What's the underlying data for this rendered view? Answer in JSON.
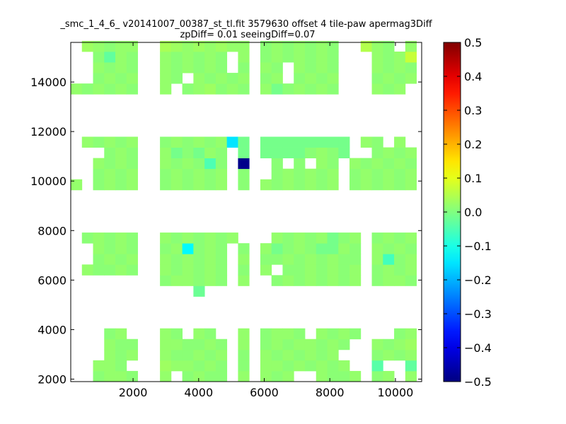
{
  "chart_data": {
    "type": "heatmap",
    "title_lines": [
      "_smc_1_4_6_ v20141007_00387_st_tl.fit 3579630 offset 4 tile-paw apermag3Diff",
      "zpDiff= 0.01 seeingDiff=0.07"
    ],
    "xlim": [
      100,
      10800
    ],
    "ylim": [
      1900,
      15600
    ],
    "xticks": [
      2000,
      4000,
      6000,
      8000,
      10000
    ],
    "xtick_labels": [
      "2000",
      "4000",
      "6000",
      "8000",
      "10000"
    ],
    "yticks": [
      2000,
      4000,
      6000,
      8000,
      10000,
      12000,
      14000
    ],
    "ytick_labels": [
      "2000",
      "4000",
      "6000",
      "8000",
      "10000",
      "12000",
      "14000"
    ],
    "colorbar": {
      "colormap": "jet",
      "vmin": -0.5,
      "vmax": 0.5,
      "ticks": [
        0.5,
        0.4,
        0.3,
        0.2,
        0.1,
        0.0,
        -0.1,
        -0.2,
        -0.3,
        -0.4,
        -0.5
      ],
      "tick_labels": [
        "0.5",
        "0.4",
        "0.3",
        "0.2",
        "0.1",
        "0.0",
        "−0.1",
        "−0.2",
        "−0.3",
        "−0.4",
        "−0.5"
      ]
    },
    "cell_width": 340,
    "cell_height": 430,
    "column_x": [
      100,
      440,
      780,
      1120,
      1460,
      1800,
      2820,
      3160,
      3500,
      3840,
      4180,
      4520,
      4860,
      5200,
      5880,
      6220,
      6560,
      6900,
      7240,
      7580,
      7920,
      8260,
      8600,
      8940,
      9280,
      9620,
      9960,
      10300
    ],
    "row_y": [
      1900,
      2330,
      2760,
      3190,
      3620,
      5340,
      5770,
      6200,
      6630,
      7060,
      7490,
      9640,
      10070,
      10500,
      10930,
      11360,
      13510,
      13940,
      14370,
      14800,
      15230
    ],
    "cells": [
      {
        "r": 0,
        "cols": [
          2,
          3,
          4,
          5,
          6,
          8,
          9,
          10,
          11,
          13,
          14,
          15,
          16,
          19,
          20,
          21,
          22,
          24,
          25,
          27
        ],
        "v": [
          0.01,
          0.02,
          0.02,
          0.01,
          0.02,
          0.01,
          0.02,
          0.01,
          0.01,
          0.02,
          0.02,
          0.01,
          0.02,
          0.02,
          0.01,
          0.01,
          0.02,
          0.01,
          0.02,
          0.02
        ]
      },
      {
        "r": 1,
        "cols": [
          2,
          3,
          4,
          6,
          7,
          8,
          9,
          10,
          11,
          13,
          14,
          15,
          16,
          17,
          18,
          19,
          20,
          21,
          24,
          27
        ],
        "v": [
          0.02,
          0.02,
          0.01,
          0.03,
          0.02,
          0.02,
          0.01,
          0.02,
          0.01,
          0.01,
          0.02,
          0.02,
          0.01,
          0.02,
          0.01,
          0.02,
          0.01,
          0.02,
          -0.04,
          -0.03
        ]
      },
      {
        "r": 2,
        "cols": [
          3,
          4,
          5,
          6,
          7,
          8,
          9,
          10,
          11,
          13,
          14,
          15,
          16,
          17,
          18,
          19,
          20,
          24,
          25,
          26,
          27
        ],
        "v": [
          0.02,
          0.01,
          0.02,
          0.02,
          0.01,
          0.01,
          0.02,
          0.01,
          0.02,
          0.01,
          0.02,
          0.01,
          0.02,
          0.01,
          0.02,
          0.01,
          0.02,
          0.01,
          0.02,
          0.01,
          0.02
        ]
      },
      {
        "r": 3,
        "cols": [
          3,
          4,
          5,
          6,
          7,
          8,
          9,
          10,
          11,
          13,
          14,
          15,
          16,
          17,
          18,
          19,
          20,
          21,
          24,
          25,
          26,
          27
        ],
        "v": [
          0.02,
          0.01,
          0.01,
          0.02,
          0.02,
          0.01,
          0.01,
          0.02,
          0.01,
          0.02,
          0.01,
          0.02,
          0.01,
          0.02,
          0.02,
          0.01,
          0.02,
          0.01,
          0.02,
          0.01,
          0.02,
          0.03
        ]
      },
      {
        "r": 4,
        "cols": [
          3,
          4,
          6,
          7,
          9,
          10,
          13,
          14,
          15,
          16,
          17,
          19,
          20,
          21,
          22,
          26,
          27
        ],
        "v": [
          0.01,
          0.02,
          0.02,
          0.01,
          0.02,
          0.01,
          0.02,
          0.01,
          0.02,
          0.02,
          0.01,
          0.02,
          0.01,
          0.02,
          0.01,
          0.01,
          0.02
        ]
      },
      {
        "r": 5,
        "cols": [
          9
        ],
        "v": [
          -0.02
        ]
      },
      {
        "r": 6,
        "cols": [
          6,
          7,
          8,
          9,
          10,
          11,
          13,
          15,
          16,
          17,
          18,
          19,
          20,
          21,
          22,
          24,
          25,
          26,
          27
        ],
        "v": [
          0.01,
          0.02,
          0.02,
          0.01,
          0.02,
          0.01,
          0.02,
          0.01,
          0.02,
          0.01,
          0.02,
          0.01,
          0.02,
          0.01,
          0.02,
          0.01,
          0.02,
          0.02,
          0.01
        ]
      },
      {
        "r": 7,
        "cols": [
          1,
          2,
          3,
          4,
          5,
          6,
          7,
          8,
          9,
          10,
          11,
          13,
          14,
          16,
          17,
          18,
          19,
          20,
          21,
          22,
          24,
          25,
          26,
          27
        ],
        "v": [
          0.02,
          0.01,
          0.01,
          0.02,
          0.01,
          0.02,
          0.01,
          0.02,
          0.01,
          0.02,
          0.01,
          0.01,
          0.02,
          0.01,
          0.01,
          0.02,
          0.01,
          0.02,
          0.01,
          0.02,
          0.01,
          0.02,
          0.01,
          0.02
        ]
      },
      {
        "r": 8,
        "cols": [
          2,
          3,
          4,
          5,
          6,
          7,
          8,
          9,
          10,
          11,
          13,
          14,
          15,
          16,
          17,
          18,
          19,
          20,
          21,
          22,
          24,
          25,
          26,
          27
        ],
        "v": [
          0.01,
          0.02,
          0.01,
          0.02,
          0.02,
          0.01,
          0.02,
          0.01,
          0.02,
          0.01,
          0.02,
          0.01,
          0.01,
          0.02,
          0.01,
          0.02,
          0.01,
          0.02,
          0.01,
          0.01,
          0.02,
          -0.06,
          0.01,
          0.02
        ]
      },
      {
        "r": 9,
        "cols": [
          2,
          3,
          4,
          5,
          6,
          7,
          8,
          9,
          10,
          11,
          13,
          14,
          15,
          16,
          17,
          18,
          19,
          20,
          21,
          22,
          24,
          25,
          26,
          27
        ],
        "v": [
          0.02,
          0.01,
          0.02,
          0.01,
          0.01,
          0.02,
          -0.13,
          0.01,
          0.02,
          0.01,
          0.01,
          0.02,
          -0.01,
          0.01,
          0.02,
          0.01,
          -0.01,
          -0.01,
          0.02,
          0.01,
          0.02,
          0.01,
          0.02,
          0.01
        ]
      },
      {
        "r": 10,
        "cols": [
          1,
          2,
          3,
          4,
          5,
          6,
          7,
          8,
          9,
          10,
          11,
          12,
          15,
          16,
          17,
          18,
          19,
          20,
          21,
          22,
          24,
          25,
          26,
          27
        ],
        "v": [
          0.01,
          0.02,
          0.01,
          0.02,
          0.01,
          0.02,
          0.01,
          0.02,
          0.01,
          0.02,
          0.01,
          0.02,
          0.02,
          0.01,
          0.02,
          0.01,
          0.02,
          -0.01,
          0.01,
          0.02,
          0.01,
          0.02,
          0.01,
          0.02
        ]
      },
      {
        "r": 11,
        "cols": [
          0,
          2,
          3,
          4,
          5,
          6,
          7,
          8,
          9,
          10,
          11,
          13,
          14,
          15,
          16,
          17,
          18,
          19,
          20,
          22,
          23,
          24,
          25,
          26,
          27
        ],
        "v": [
          0.02,
          0.01,
          0.02,
          0.01,
          0.02,
          0.01,
          0.02,
          0.01,
          0.02,
          0.01,
          0.02,
          0.01,
          0.02,
          0.01,
          0.02,
          0.01,
          0.02,
          0.01,
          0.02,
          0.01,
          0.02,
          0.01,
          0.02,
          0.01,
          0.02
        ]
      },
      {
        "r": 12,
        "cols": [
          2,
          3,
          4,
          5,
          6,
          7,
          8,
          9,
          10,
          11,
          13,
          15,
          16,
          17,
          18,
          19,
          20,
          22,
          23,
          24,
          25,
          26,
          27
        ],
        "v": [
          0.01,
          0.02,
          0.01,
          0.02,
          0.01,
          0.02,
          0.01,
          0.02,
          0.01,
          0.02,
          0.01,
          0.01,
          0.02,
          0.01,
          0.02,
          0.01,
          0.02,
          0.01,
          0.02,
          0.01,
          0.02,
          0.01,
          0.02
        ]
      },
      {
        "r": 13,
        "cols": [
          2,
          3,
          4,
          5,
          6,
          7,
          8,
          9,
          10,
          11,
          13,
          15,
          17,
          19,
          20,
          22,
          23,
          24,
          25,
          26,
          27
        ],
        "v": [
          0.02,
          0.01,
          0.02,
          0.01,
          0.02,
          0.01,
          0.02,
          0.01,
          -0.05,
          0.01,
          -0.49,
          0.01,
          0.01,
          0.02,
          0.01,
          0.02,
          0.01,
          0.02,
          0.01,
          0.02,
          0.01
        ]
      },
      {
        "r": 14,
        "cols": [
          3,
          4,
          5,
          6,
          7,
          8,
          9,
          10,
          11,
          13,
          14,
          15,
          16,
          17,
          18,
          19,
          20,
          21,
          24,
          25,
          26,
          27
        ],
        "v": [
          0.01,
          0.02,
          0.01,
          0.02,
          -0.01,
          0.01,
          -0.01,
          0.02,
          0.01,
          -0.01,
          -0.01,
          -0.01,
          -0.01,
          -0.01,
          0.01,
          0.02,
          0.01,
          -0.01,
          0.01,
          0.02,
          0.01,
          0.02
        ]
      },
      {
        "r": 15,
        "cols": [
          1,
          2,
          3,
          4,
          5,
          6,
          7,
          8,
          9,
          10,
          11,
          12,
          13,
          14,
          15,
          16,
          17,
          18,
          19,
          20,
          21,
          23,
          24,
          26
        ],
        "v": [
          0.02,
          0.01,
          0.02,
          0.01,
          0.02,
          0.01,
          0.02,
          0.01,
          0.02,
          0.01,
          0.02,
          -0.15,
          -0.01,
          -0.01,
          -0.01,
          -0.01,
          -0.01,
          -0.01,
          -0.01,
          -0.01,
          -0.01,
          0.02,
          0.01,
          0.02
        ]
      },
      {
        "r": 16,
        "cols": [
          0,
          1,
          2,
          3,
          4,
          5,
          6,
          8,
          9,
          10,
          11,
          12,
          13,
          14,
          15,
          16,
          17,
          18,
          19,
          20,
          24,
          25,
          26
        ],
        "v": [
          0.02,
          0.01,
          0.02,
          0.01,
          0.02,
          0.01,
          0.02,
          0.01,
          0.02,
          0.03,
          0.01,
          0.02,
          0.01,
          0.02,
          -0.01,
          0.01,
          0.02,
          0.01,
          0.02,
          0.01,
          0.02,
          0.01,
          0.02
        ]
      },
      {
        "r": 17,
        "cols": [
          2,
          3,
          4,
          5,
          6,
          7,
          9,
          10,
          11,
          12,
          13,
          14,
          15,
          17,
          18,
          19,
          20,
          24,
          25,
          26,
          27
        ],
        "v": [
          0.01,
          0.02,
          0.01,
          0.02,
          0.02,
          0.01,
          0.02,
          0.01,
          0.02,
          0.01,
          0.02,
          0.01,
          0.02,
          0.01,
          0.02,
          0.01,
          0.02,
          0.01,
          0.02,
          0.01,
          0.02
        ]
      },
      {
        "r": 18,
        "cols": [
          2,
          3,
          4,
          5,
          6,
          7,
          8,
          9,
          10,
          11,
          13,
          14,
          15,
          17,
          18,
          19,
          20,
          24,
          25,
          26,
          27
        ],
        "v": [
          0.02,
          0.01,
          0.02,
          0.01,
          0.02,
          0.01,
          0.02,
          0.01,
          0.02,
          0.01,
          0.01,
          0.02,
          0.01,
          0.02,
          0.01,
          0.02,
          0.01,
          0.02,
          0.01,
          0.02,
          0.01
        ]
      },
      {
        "r": 19,
        "cols": [
          2,
          3,
          4,
          5,
          6,
          7,
          8,
          9,
          10,
          11,
          13,
          14,
          15,
          16,
          17,
          18,
          19,
          20,
          24,
          25,
          26,
          27
        ],
        "v": [
          0.01,
          -0.03,
          0.02,
          0.01,
          0.02,
          0.01,
          0.02,
          0.01,
          0.02,
          0.01,
          0.02,
          0.01,
          0.02,
          0.01,
          0.02,
          0.01,
          0.02,
          0.01,
          0.02,
          0.01,
          0.02,
          0.07
        ]
      },
      {
        "r": 20,
        "cols": [
          1,
          2,
          3,
          4,
          5,
          6,
          7,
          8,
          9,
          10,
          11,
          12,
          13,
          14,
          15,
          16,
          17,
          18,
          19,
          20,
          23,
          24,
          25,
          27
        ],
        "v": [
          0.03,
          0.02,
          0.01,
          0.02,
          0.02,
          0.04,
          0.03,
          0.02,
          0.03,
          0.02,
          0.03,
          0.02,
          0.02,
          0.01,
          0.02,
          0.01,
          0.02,
          0.01,
          0.02,
          0.01,
          0.05,
          0.02,
          0.01,
          0.02
        ]
      }
    ]
  }
}
